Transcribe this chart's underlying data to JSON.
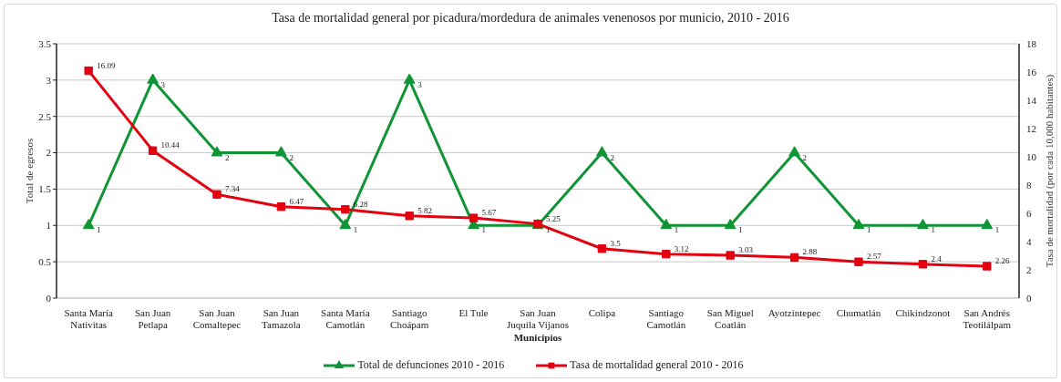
{
  "chart_data": {
    "type": "line",
    "title": "Tasa de mortalidad general por picadura/mordedura de animales venenosos por municio, 2010 - 2016",
    "xlabel": "Municipios",
    "ylabel": "Total de egresos",
    "y2label": "Tasa de mortalidad (por cada 10,000 habitantes)",
    "categories": [
      "Santa María Nativitas",
      "San Juan Petlapa",
      "San Juan Comaltepec",
      "San Juan Tamazola",
      "Santa María Camotlán",
      "Santiago Choápam",
      "El Tule",
      "San Juan Juquila Vijanos",
      "Colipa",
      "Santiago Camotlán",
      "San Miguel Coatlán",
      "Ayotzintepec",
      "Chumatlán",
      "Chikindzonot",
      "San Andrés Teotilálpam"
    ],
    "series": [
      {
        "name": "Total de defunciones 2010 - 2016",
        "color": "#0f9535",
        "marker": "triangle",
        "values": [
          1,
          3,
          2,
          2,
          1,
          3,
          1,
          1,
          2,
          1,
          1,
          2,
          1,
          1,
          1
        ]
      },
      {
        "name": "Tasa de mortalidad general 2010 - 2016",
        "color": "#e3000f",
        "marker": "square",
        "axis": "y2",
        "values": [
          16.09,
          10.44,
          7.34,
          6.47,
          6.28,
          5.82,
          5.67,
          5.25,
          3.5,
          3.12,
          3.03,
          2.88,
          2.57,
          2.4,
          2.26
        ]
      }
    ],
    "ylim": [
      0,
      3.5
    ],
    "yticks": [
      0,
      0.5,
      1,
      1.5,
      2,
      2.5,
      3,
      3.5
    ],
    "y2lim": [
      0,
      18
    ],
    "y2ticks": [
      0,
      2,
      4,
      6,
      8,
      10,
      12,
      14,
      16,
      18
    ],
    "grid": "y",
    "legend": "bottom",
    "data_labels": true,
    "line_style": "solid"
  }
}
